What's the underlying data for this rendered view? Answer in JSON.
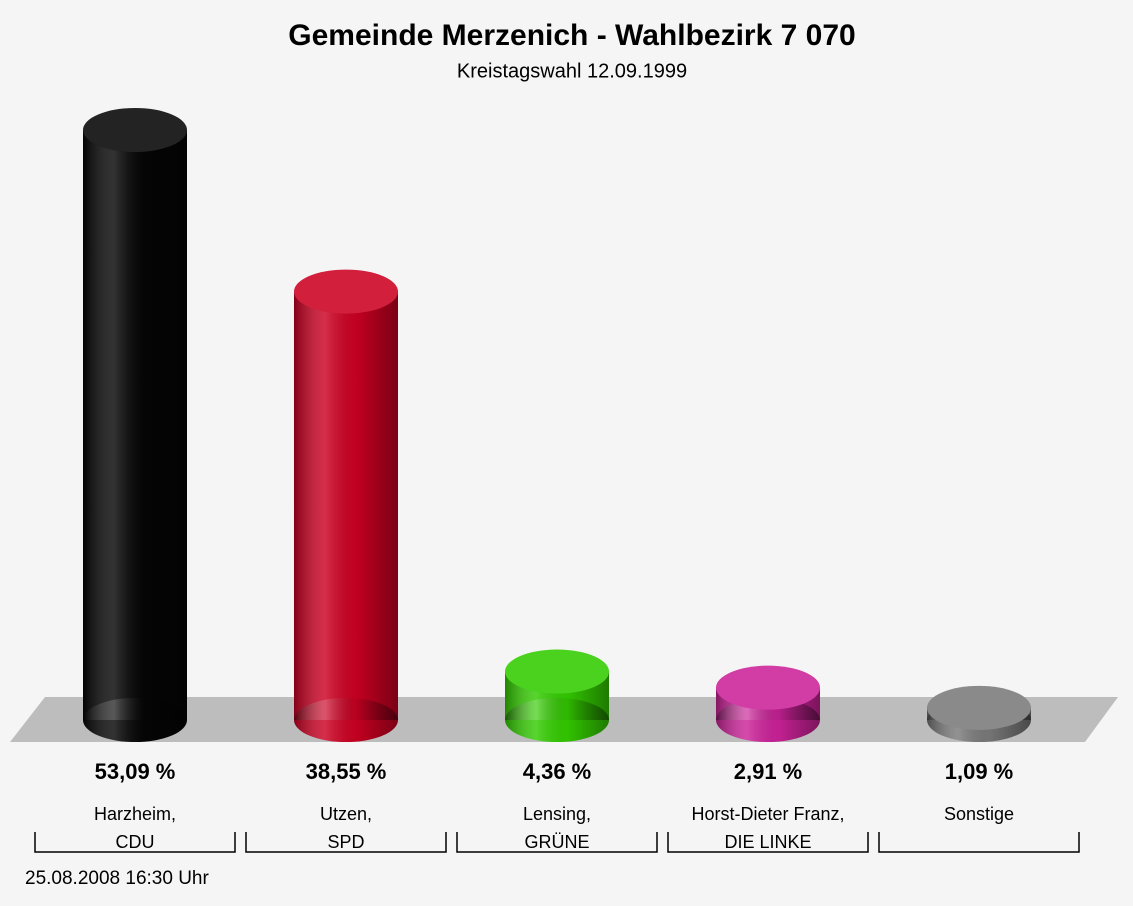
{
  "chart_data": {
    "type": "bar",
    "title": "Gemeinde Merzenich - Wahlbezirk 7 070",
    "subtitle": "Kreistagswahl 12.09.1999",
    "categories": [
      "Harzheim,\nCDU",
      "Utzen,\nSPD",
      "Lensing,\nGRÜNE",
      "Horst-Dieter Franz,\nDIE LINKE",
      "Sonstige"
    ],
    "values": [
      53.09,
      38.55,
      4.36,
      2.91,
      1.09
    ],
    "value_labels": [
      "53,09 %",
      "38,55 %",
      "4,36 %",
      "2,91 %",
      "1,09 %"
    ],
    "colors": [
      "#050505",
      "#cc0022",
      "#33cc00",
      "#cc2299",
      "#7a7a7a"
    ],
    "footer": "25.08.2008 16:30 Uhr"
  }
}
